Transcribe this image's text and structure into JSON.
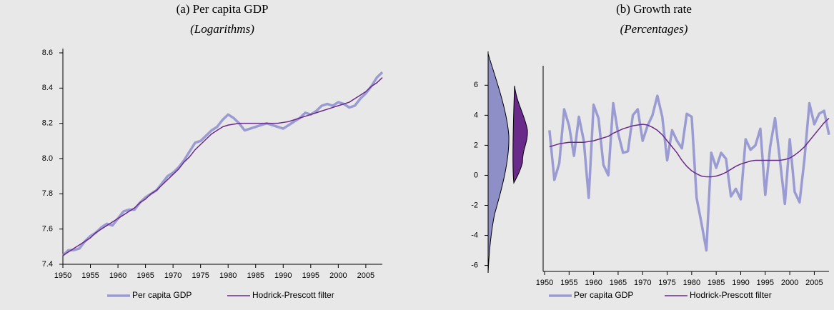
{
  "chart_data": [
    {
      "type": "line",
      "title": "(a) Per capita GDP",
      "subtitle": "(Logarithms)",
      "x": [
        1950,
        1951,
        1952,
        1953,
        1954,
        1955,
        1956,
        1957,
        1958,
        1959,
        1960,
        1961,
        1962,
        1963,
        1964,
        1965,
        1966,
        1967,
        1968,
        1969,
        1970,
        1971,
        1972,
        1973,
        1974,
        1975,
        1976,
        1977,
        1978,
        1979,
        1980,
        1981,
        1982,
        1983,
        1984,
        1985,
        1986,
        1987,
        1988,
        1989,
        1990,
        1991,
        1992,
        1993,
        1994,
        1995,
        1996,
        1997,
        1998,
        1999,
        2000,
        2001,
        2002,
        2003,
        2004,
        2005,
        2006,
        2007,
        2008
      ],
      "xlim": [
        1950,
        2008
      ],
      "xticks": [
        1950,
        1955,
        1960,
        1965,
        1970,
        1975,
        1980,
        1985,
        1990,
        1995,
        2000,
        2005
      ],
      "ylim": [
        7.4,
        8.6
      ],
      "yticks": [
        7.4,
        7.6,
        7.8,
        {
          "value": 8,
          "label": "8.0"
        },
        8.2,
        8.4,
        8.6
      ],
      "legend": "bottom",
      "series": [
        {
          "name": "Per capita GDP",
          "color": "#9b9bd4",
          "values": [
            7.45,
            7.48,
            7.48,
            7.49,
            7.53,
            7.56,
            7.58,
            7.61,
            7.63,
            7.62,
            7.66,
            7.7,
            7.71,
            7.71,
            7.75,
            7.78,
            7.8,
            7.82,
            7.86,
            7.9,
            7.92,
            7.95,
            7.99,
            8.04,
            8.09,
            8.1,
            8.13,
            8.16,
            8.18,
            8.22,
            8.25,
            8.23,
            8.2,
            8.16,
            8.17,
            8.18,
            8.19,
            8.2,
            8.19,
            8.18,
            8.17,
            8.19,
            8.21,
            8.23,
            8.26,
            8.25,
            8.27,
            8.3,
            8.31,
            8.3,
            8.32,
            8.31,
            8.29,
            8.3,
            8.34,
            8.37,
            8.41,
            8.46,
            8.49
          ]
        },
        {
          "name": "Hodrick-Prescott filter",
          "color": "#6a2a8a",
          "values": [
            7.45,
            7.47,
            7.49,
            7.51,
            7.53,
            7.55,
            7.58,
            7.6,
            7.62,
            7.64,
            7.66,
            7.68,
            7.7,
            7.72,
            7.75,
            7.77,
            7.8,
            7.82,
            7.85,
            7.88,
            7.91,
            7.94,
            7.98,
            8.01,
            8.05,
            8.08,
            8.11,
            8.14,
            8.16,
            8.18,
            8.19,
            8.195,
            8.2,
            8.2,
            8.2,
            8.2,
            8.2,
            8.2,
            8.2,
            8.2,
            8.205,
            8.21,
            8.22,
            8.23,
            8.24,
            8.25,
            8.26,
            8.27,
            8.28,
            8.29,
            8.3,
            8.31,
            8.32,
            8.34,
            8.36,
            8.38,
            8.41,
            8.43,
            8.46
          ]
        }
      ]
    },
    {
      "type": "line",
      "title": "(b) Growth rate",
      "subtitle": "(Percentages)",
      "x": [
        1951,
        1952,
        1953,
        1954,
        1955,
        1956,
        1957,
        1958,
        1959,
        1960,
        1961,
        1962,
        1963,
        1964,
        1965,
        1966,
        1967,
        1968,
        1969,
        1970,
        1971,
        1972,
        1973,
        1974,
        1975,
        1976,
        1977,
        1978,
        1979,
        1980,
        1981,
        1982,
        1983,
        1984,
        1985,
        1986,
        1987,
        1988,
        1989,
        1990,
        1991,
        1992,
        1993,
        1994,
        1995,
        1996,
        1997,
        1998,
        1999,
        2000,
        2001,
        2002,
        2003,
        2004,
        2005,
        2006,
        2007,
        2008
      ],
      "xlim": [
        1950,
        2008
      ],
      "xticks": [
        1950,
        1955,
        1960,
        1965,
        1970,
        1975,
        1980,
        1985,
        1990,
        1995,
        2000,
        2005
      ],
      "ylim": [
        -6.4,
        7.3
      ],
      "yticks": [
        -6,
        -4,
        -2,
        0,
        2,
        4,
        6
      ],
      "legend": "bottom",
      "series": [
        {
          "name": "Per capita GDP",
          "color": "#9b9bd4",
          "values": [
            3.0,
            -0.3,
            0.8,
            4.4,
            3.3,
            1.3,
            3.9,
            2.3,
            -1.5,
            4.7,
            3.8,
            0.7,
            0.0,
            4.8,
            2.8,
            1.5,
            1.6,
            4.0,
            4.4,
            2.3,
            3.3,
            4.0,
            5.3,
            3.9,
            1.0,
            3.0,
            2.3,
            1.8,
            4.1,
            3.9,
            -1.5,
            -3.2,
            -5.0,
            1.5,
            0.5,
            1.5,
            1.1,
            -1.4,
            -0.9,
            -1.6,
            2.4,
            1.7,
            2.0,
            3.1,
            -1.3,
            1.9,
            3.8,
            1.0,
            -1.9,
            2.4,
            -1.1,
            -1.8,
            1.1,
            4.8,
            3.4,
            4.1,
            4.3,
            2.7
          ]
        },
        {
          "name": "Hodrick-Prescott filter",
          "color": "#6a2a8a",
          "values": [
            1.9,
            2.0,
            2.1,
            2.15,
            2.2,
            2.2,
            2.2,
            2.2,
            2.25,
            2.3,
            2.4,
            2.5,
            2.6,
            2.8,
            2.95,
            3.1,
            3.2,
            3.3,
            3.35,
            3.4,
            3.35,
            3.2,
            3.0,
            2.7,
            2.3,
            1.9,
            1.5,
            1.0,
            0.6,
            0.3,
            0.1,
            -0.05,
            -0.1,
            -0.1,
            -0.05,
            0.05,
            0.2,
            0.4,
            0.6,
            0.75,
            0.85,
            0.95,
            1.0,
            1.0,
            1.0,
            1.0,
            1.0,
            1.0,
            1.05,
            1.15,
            1.35,
            1.6,
            1.9,
            2.3,
            2.7,
            3.1,
            3.5,
            3.8
          ]
        }
      ]
    }
  ]
}
